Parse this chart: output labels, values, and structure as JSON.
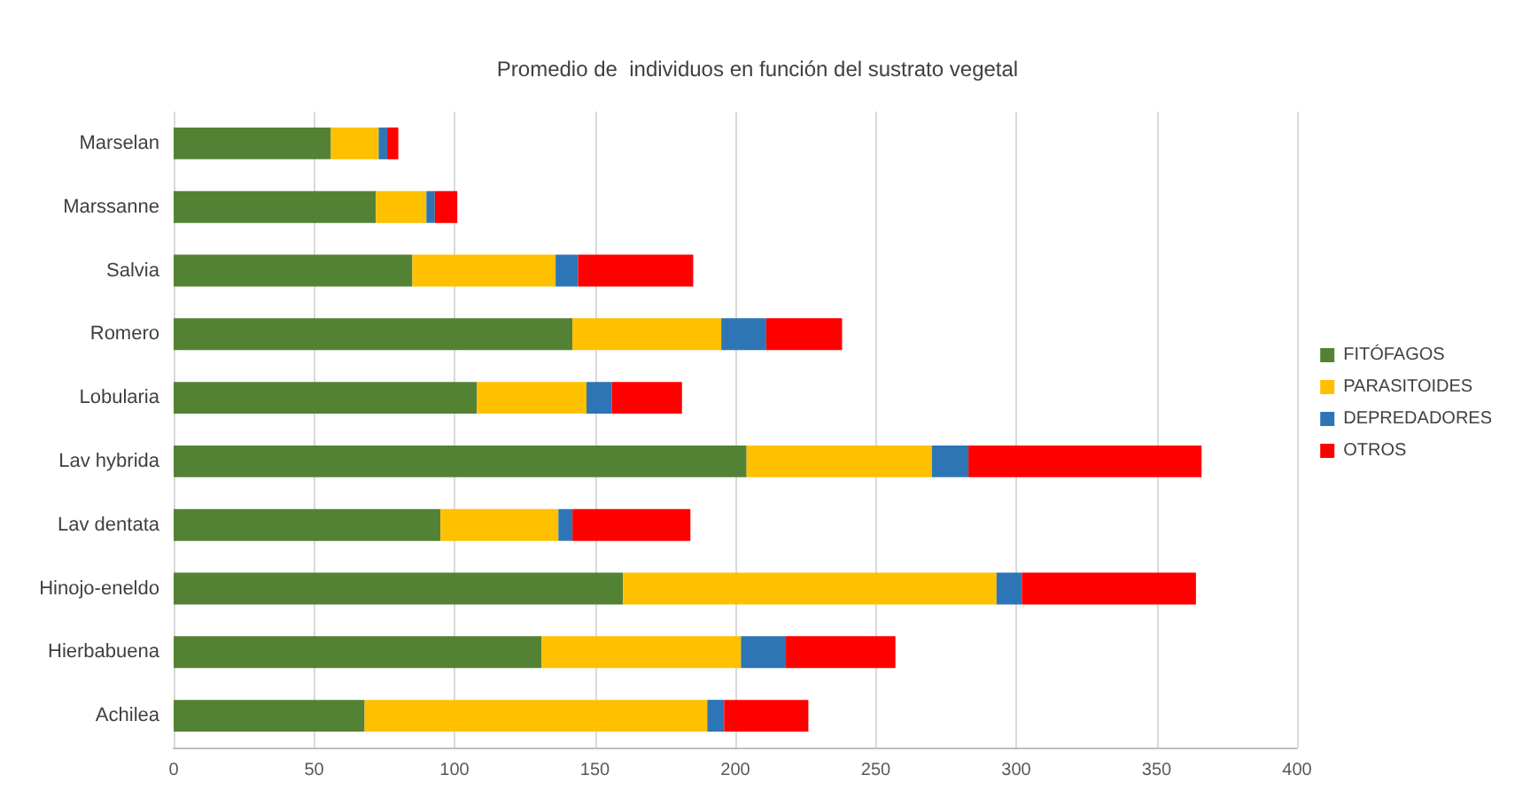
{
  "chart_data": {
    "type": "bar",
    "orientation": "horizontal",
    "stacked": true,
    "title": "Promedio de  individuos en función del sustrato vegetal",
    "categories": [
      "Marselan",
      "Marssanne",
      "Salvia",
      "Romero",
      "Lobularia",
      "Lav hybrida",
      "Lav dentata",
      "Hinojo-eneldo",
      "Hierbabuena",
      "Achilea"
    ],
    "series": [
      {
        "name": "FITÓFAGOS",
        "color": "#548235",
        "values": [
          56,
          72,
          85,
          142,
          108,
          204,
          95,
          160,
          131,
          68
        ]
      },
      {
        "name": "PARASITOIDES",
        "color": "#ffc000",
        "values": [
          17,
          18,
          51,
          53,
          39,
          66,
          42,
          133,
          71,
          122
        ]
      },
      {
        "name": "DEPREDADORES",
        "color": "#2e75b6",
        "values": [
          3,
          3,
          8,
          16,
          9,
          13,
          5,
          9,
          16,
          6
        ]
      },
      {
        "name": "OTROS",
        "color": "#ff0000",
        "values": [
          4,
          8,
          41,
          27,
          25,
          83,
          42,
          62,
          39,
          30
        ]
      }
    ],
    "xlim": [
      0,
      400
    ],
    "xticks": [
      0,
      50,
      100,
      150,
      200,
      250,
      300,
      350,
      400
    ],
    "grid": "x",
    "legend": "right"
  }
}
